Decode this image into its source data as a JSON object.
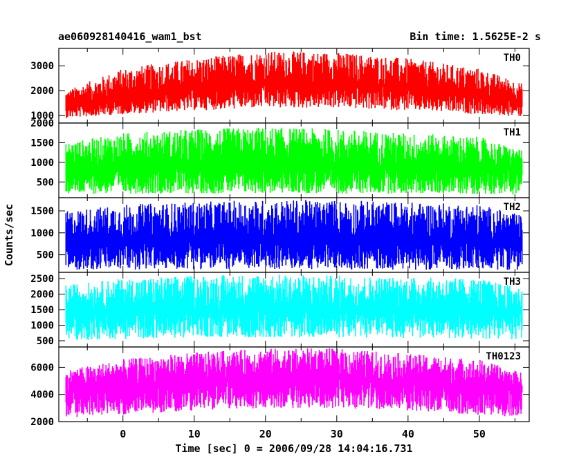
{
  "chart_data": {
    "type": "line",
    "title": "ae060928140416_wam1_bst",
    "subtitle": "Bin time: 1.5625E-2 s",
    "xlabel": "Time [sec] 0 = 2006/09/28 14:04:16.731",
    "ylabel": "Counts/sec",
    "xlim": [
      -9,
      57
    ],
    "x_range": [
      -8,
      56
    ],
    "x_ticks": [
      0,
      10,
      20,
      30,
      40,
      50
    ],
    "grid": false,
    "panels": [
      {
        "name": "TH0",
        "color": "#ff0000",
        "ylim": [
          700,
          3700
        ],
        "y_ticks": [
          1000,
          2000,
          3000
        ],
        "envelope": {
          "x": [
            -8,
            0,
            10,
            20,
            30,
            40,
            50,
            56
          ],
          "mean": [
            1350,
            1700,
            2050,
            2300,
            2300,
            2100,
            1800,
            1550
          ],
          "low": [
            900,
            1050,
            1200,
            1300,
            1300,
            1200,
            1050,
            950
          ],
          "high": [
            2000,
            2900,
            3300,
            3600,
            3550,
            3300,
            2900,
            2300
          ]
        }
      },
      {
        "name": "TH1",
        "color": "#00ff00",
        "ylim": [
          100,
          2000
        ],
        "y_ticks": [
          500,
          1000,
          1500,
          2000
        ],
        "envelope": {
          "x": [
            -8,
            0,
            10,
            20,
            30,
            40,
            50,
            56
          ],
          "mean": [
            850,
            870,
            880,
            890,
            880,
            870,
            860,
            850
          ],
          "low": [
            180,
            200,
            200,
            210,
            200,
            200,
            190,
            180
          ],
          "high": [
            1500,
            1750,
            1850,
            1900,
            1850,
            1750,
            1650,
            1300
          ]
        }
      },
      {
        "name": "TH2",
        "color": "#0000ff",
        "ylim": [
          100,
          1800
        ],
        "y_ticks": [
          500,
          1000,
          1500
        ],
        "envelope": {
          "x": [
            -8,
            0,
            10,
            20,
            30,
            40,
            50,
            56
          ],
          "mean": [
            800,
            810,
            820,
            820,
            820,
            810,
            810,
            800
          ],
          "low": [
            150,
            160,
            170,
            170,
            170,
            160,
            160,
            150
          ],
          "high": [
            1500,
            1650,
            1700,
            1750,
            1750,
            1700,
            1650,
            1400
          ]
        }
      },
      {
        "name": "TH3",
        "color": "#00ffff",
        "ylim": [
          300,
          2700
        ],
        "y_ticks": [
          500,
          1000,
          1500,
          2000,
          2500
        ],
        "envelope": {
          "x": [
            -8,
            0,
            10,
            20,
            30,
            40,
            50,
            56
          ],
          "mean": [
            1450,
            1480,
            1500,
            1500,
            1500,
            1490,
            1480,
            1460
          ],
          "low": [
            500,
            550,
            600,
            600,
            600,
            580,
            560,
            520
          ],
          "high": [
            2300,
            2500,
            2600,
            2650,
            2600,
            2550,
            2500,
            2200
          ]
        }
      },
      {
        "name": "TH0123",
        "color": "#ff00ff",
        "ylim": [
          2000,
          7500
        ],
        "y_ticks": [
          2000,
          4000,
          6000
        ],
        "envelope": {
          "x": [
            -8,
            0,
            10,
            20,
            30,
            40,
            50,
            56
          ],
          "mean": [
            4300,
            4600,
            4950,
            5200,
            5150,
            4900,
            4550,
            4300
          ],
          "low": [
            2300,
            2500,
            2800,
            3000,
            3000,
            2800,
            2500,
            2300
          ],
          "high": [
            5800,
            6600,
            7100,
            7400,
            7400,
            7000,
            6600,
            5600
          ]
        }
      }
    ]
  }
}
